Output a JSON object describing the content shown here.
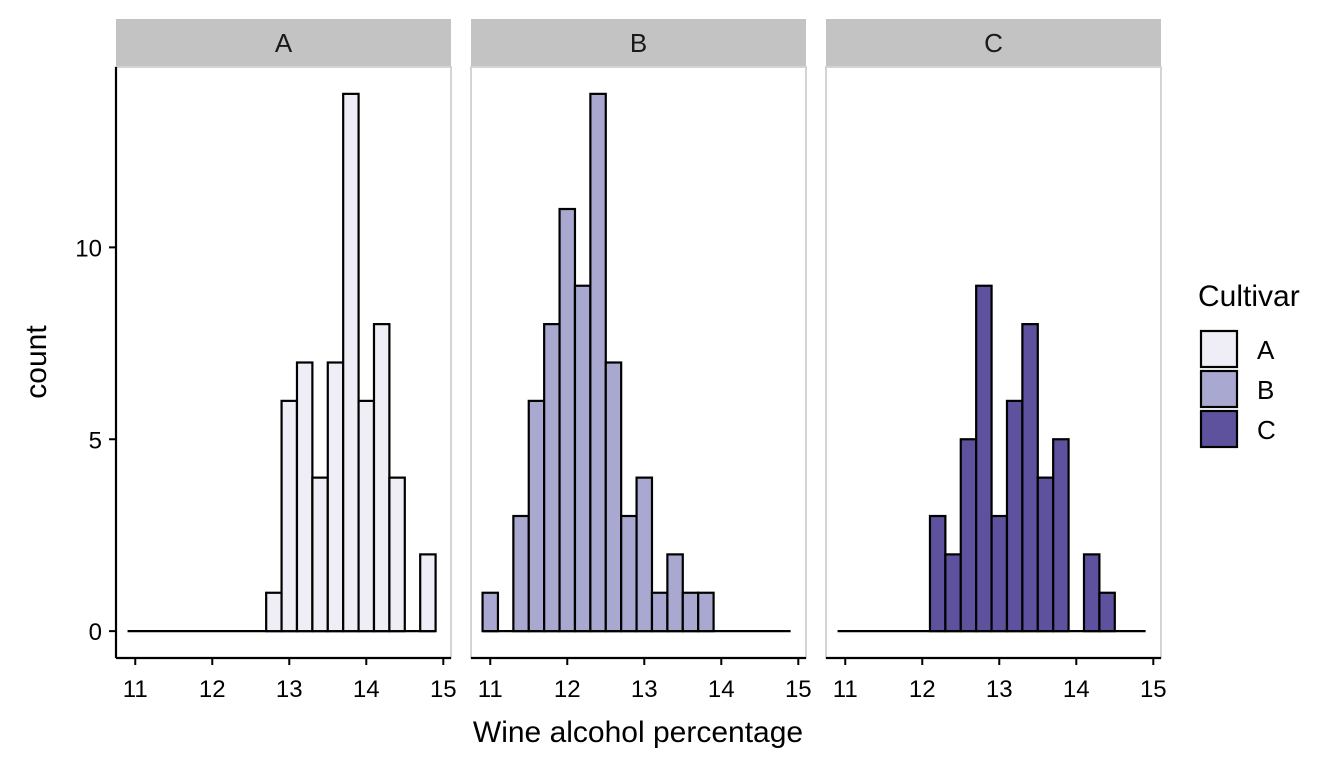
{
  "chart_data": {
    "type": "bar",
    "subtype": "faceted-histogram",
    "xlabel": "Wine alcohol percentage",
    "ylabel": "count",
    "xlim": [
      10.75,
      15.1
    ],
    "ylim": [
      -0.7,
      14.7
    ],
    "x_ticks": [
      11,
      12,
      13,
      14,
      15
    ],
    "y_ticks": [
      0,
      5,
      10
    ],
    "bin_width": 0.2,
    "bin_centers": [
      11.0,
      11.2,
      11.4,
      11.6,
      11.8,
      12.0,
      12.2,
      12.4,
      12.6,
      12.8,
      13.0,
      13.2,
      13.4,
      13.6,
      13.8,
      14.0,
      14.2,
      14.4,
      14.6,
      14.8
    ],
    "legend": {
      "title": "Cultivar",
      "position": "right",
      "items": [
        {
          "label": "A",
          "color": "#efedf5"
        },
        {
          "label": "B",
          "color": "#a9a8d0"
        },
        {
          "label": "C",
          "color": "#5e519e"
        }
      ]
    },
    "facets": [
      {
        "label": "A",
        "color": "#efedf5",
        "values": [
          0,
          0,
          0,
          0,
          0,
          0,
          0,
          0,
          0,
          1,
          6,
          7,
          4,
          7,
          14,
          6,
          8,
          4,
          0,
          2
        ]
      },
      {
        "label": "B",
        "color": "#a9a8d0",
        "values": [
          1,
          0,
          3,
          6,
          8,
          11,
          9,
          14,
          7,
          3,
          4,
          1,
          2,
          1,
          1,
          0,
          0,
          0,
          0,
          0
        ]
      },
      {
        "label": "C",
        "color": "#5e519e",
        "values": [
          0,
          0,
          0,
          0,
          0,
          0,
          3,
          2,
          5,
          9,
          3,
          6,
          8,
          4,
          5,
          0,
          2,
          1,
          0,
          0
        ]
      }
    ],
    "grid": false
  }
}
